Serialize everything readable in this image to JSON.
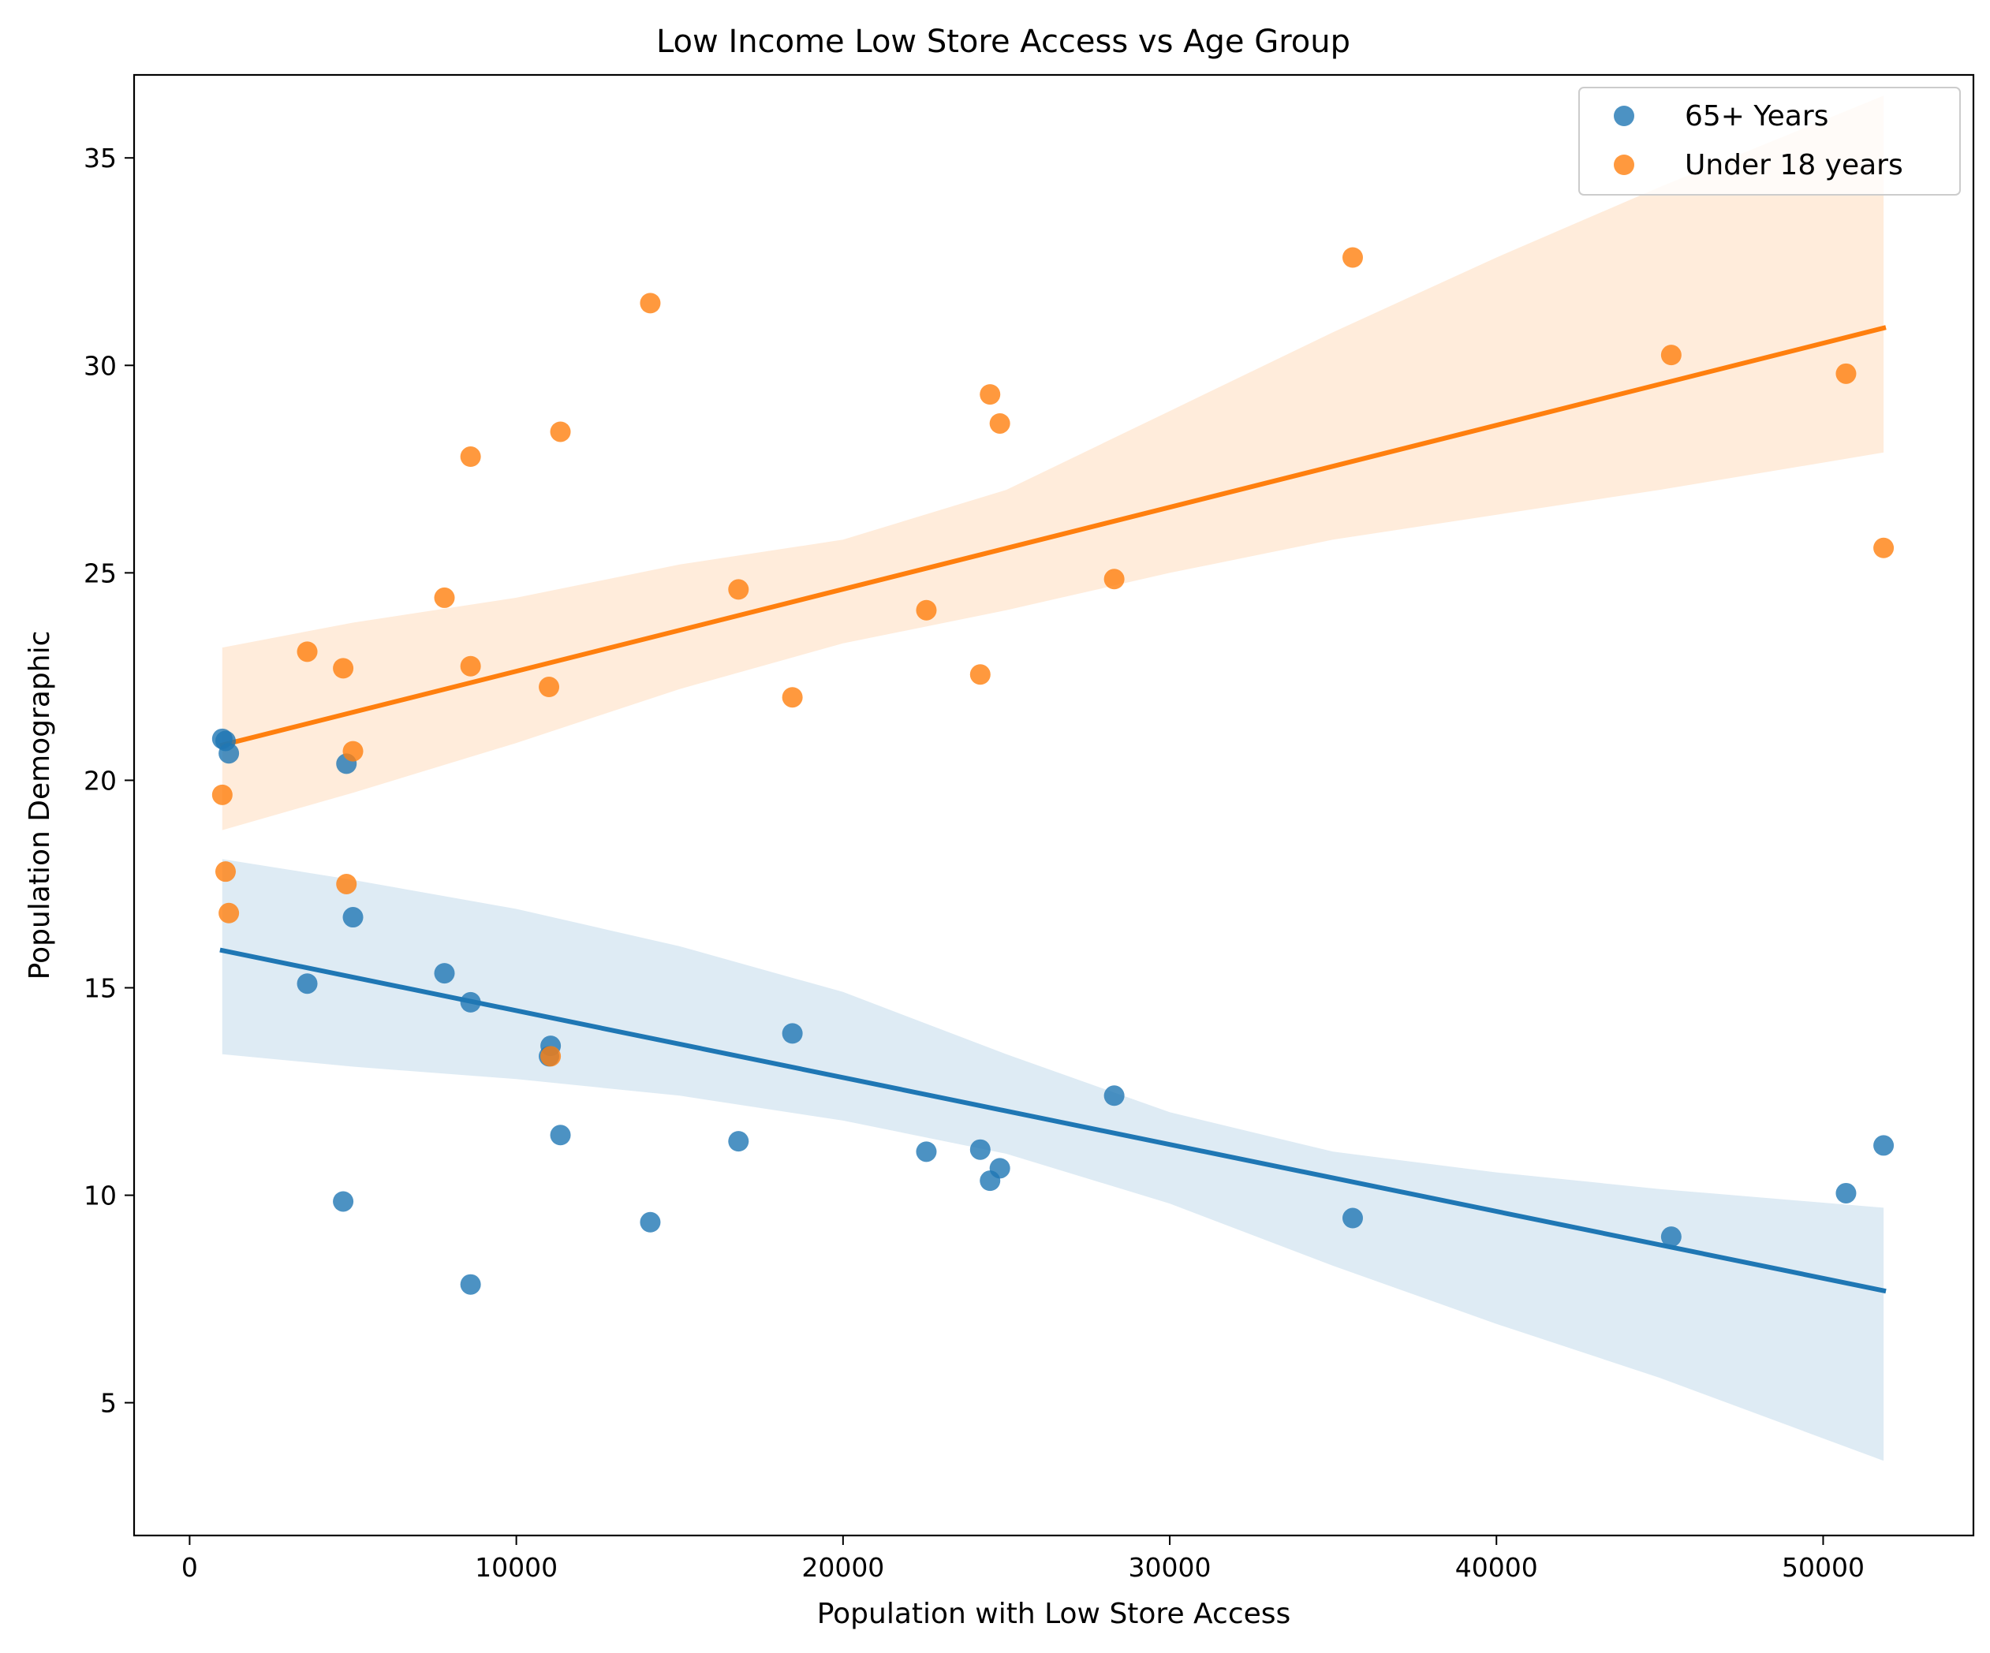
{
  "chart_data": {
    "type": "scatter",
    "title": "Low Income Low Store Access vs Age Group",
    "xlabel": "Population with Low Store Access",
    "ylabel": "Population Demographic",
    "xlim": [
      -1700,
      54600
    ],
    "ylim": [
      1.8,
      37.0
    ],
    "xticks": [
      0,
      10000,
      20000,
      30000,
      40000,
      50000
    ],
    "yticks": [
      5,
      10,
      15,
      20,
      25,
      30,
      35
    ],
    "grid": false,
    "legend_position": "top-right",
    "series": [
      {
        "name": "65+ Years",
        "color": "#1f77b4",
        "x": [
          1000,
          1100,
          1200,
          4800,
          5000,
          3600,
          7800,
          8600,
          11050,
          11000,
          18450,
          11350,
          16800,
          22550,
          24200,
          24800,
          24500,
          28300,
          4700,
          14100,
          8600,
          35600,
          45350,
          50700,
          51850
        ],
        "y": [
          21.0,
          20.95,
          20.65,
          20.4,
          16.7,
          15.1,
          15.35,
          14.65,
          13.6,
          13.35,
          13.9,
          11.45,
          11.3,
          11.05,
          11.1,
          10.65,
          10.35,
          12.4,
          9.85,
          9.35,
          7.85,
          9.45,
          9.0,
          10.05,
          11.2
        ],
        "trend": {
          "x": [
            1000,
            51850
          ],
          "y": [
            15.9,
            7.7
          ]
        },
        "ci": {
          "x": [
            1000,
            5000,
            10000,
            15000,
            20000,
            25000,
            30000,
            35000,
            40000,
            45000,
            51850
          ],
          "upper": [
            18.1,
            17.6,
            16.9,
            16.0,
            14.9,
            13.4,
            12.0,
            11.05,
            10.55,
            10.15,
            9.7
          ],
          "lower": [
            13.4,
            13.1,
            12.8,
            12.4,
            11.8,
            11.0,
            9.8,
            8.3,
            6.9,
            5.6,
            3.6
          ]
        }
      },
      {
        "name": "Under 18 years",
        "color": "#ff7f0e",
        "x": [
          1000,
          1100,
          1200,
          3600,
          4700,
          5000,
          4800,
          7800,
          8600,
          8600,
          11000,
          11350,
          11050,
          14100,
          16800,
          18450,
          22550,
          24200,
          24500,
          24800,
          28300,
          35600,
          45350,
          50700,
          51850
        ],
        "y": [
          19.65,
          17.8,
          16.8,
          23.1,
          22.7,
          20.7,
          17.5,
          24.4,
          22.75,
          27.8,
          22.25,
          28.4,
          13.35,
          31.5,
          24.6,
          22.0,
          24.1,
          22.55,
          29.3,
          28.6,
          24.85,
          32.6,
          30.25,
          29.8,
          25.6
        ],
        "trend": {
          "x": [
            1000,
            51850
          ],
          "y": [
            20.85,
            30.9
          ]
        },
        "ci": {
          "x": [
            1000,
            5000,
            10000,
            15000,
            20000,
            25000,
            30000,
            35000,
            40000,
            45000,
            51850
          ],
          "upper": [
            23.2,
            23.8,
            24.4,
            25.2,
            25.8,
            27.0,
            28.9,
            30.8,
            32.6,
            34.3,
            36.5
          ],
          "lower": [
            18.8,
            19.7,
            20.9,
            22.2,
            23.3,
            24.1,
            25.0,
            25.8,
            26.4,
            27.0,
            27.9
          ]
        }
      }
    ]
  }
}
